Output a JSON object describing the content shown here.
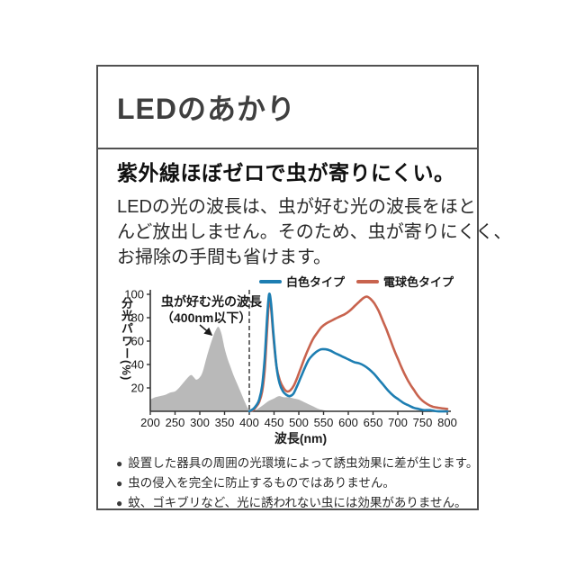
{
  "card": {
    "title": "LEDのあかり",
    "heading": "紫外線ほぼゼロで虫が寄りにくい。",
    "body_lines": [
      "LEDの光の波長は、虫が好む光の波長をほと",
      "んど放出しません。そのため、虫が寄りにくく、",
      "お掃除の手間も省けます。"
    ],
    "bullet": "●",
    "footnotes": [
      "設置した器具の周囲の光環境によって誘虫効果に差が生じます。",
      "虫の侵入を完全に防止するものではありません。",
      "蚊、ゴキブリなど、光に誘われない虫には効果がありません。"
    ]
  },
  "chart_data": {
    "type": "line",
    "title": "",
    "xlabel": "波長(nm)",
    "ylabel": "分光パワー(%)",
    "xlim": [
      200,
      800
    ],
    "ylim": [
      0,
      100
    ],
    "x_ticks": [
      200,
      250,
      300,
      350,
      400,
      450,
      500,
      550,
      600,
      650,
      700,
      750,
      800
    ],
    "y_ticks": [
      20,
      40,
      60,
      80,
      100
    ],
    "grid": false,
    "legend_position": "top-right",
    "dashed_line_x": 400,
    "annotation": {
      "line1": "虫が好む光の波長",
      "line2": "（400nm以下）"
    },
    "insect_area": {
      "name": "虫が好む光の波長（400nm以下）",
      "color": "#b9b9b9",
      "points": [
        [
          200,
          10
        ],
        [
          210,
          12
        ],
        [
          220,
          13
        ],
        [
          230,
          14
        ],
        [
          240,
          16
        ],
        [
          250,
          17
        ],
        [
          258,
          20
        ],
        [
          266,
          24
        ],
        [
          274,
          28
        ],
        [
          282,
          31
        ],
        [
          288,
          29
        ],
        [
          293,
          27
        ],
        [
          300,
          29
        ],
        [
          306,
          34
        ],
        [
          313,
          45
        ],
        [
          320,
          55
        ],
        [
          327,
          64
        ],
        [
          333,
          70
        ],
        [
          338,
          72
        ],
        [
          344,
          66
        ],
        [
          350,
          54
        ],
        [
          356,
          45
        ],
        [
          362,
          38
        ],
        [
          368,
          31
        ],
        [
          374,
          25
        ],
        [
          380,
          19
        ],
        [
          386,
          13
        ],
        [
          392,
          7
        ],
        [
          398,
          2
        ],
        [
          404,
          0
        ],
        [
          412,
          1
        ],
        [
          420,
          3
        ],
        [
          430,
          6
        ],
        [
          440,
          9
        ],
        [
          450,
          11
        ],
        [
          460,
          13
        ],
        [
          470,
          12
        ],
        [
          480,
          12
        ],
        [
          490,
          11
        ],
        [
          500,
          10
        ],
        [
          510,
          8
        ],
        [
          520,
          6
        ],
        [
          530,
          4
        ],
        [
          540,
          2
        ],
        [
          550,
          1
        ],
        [
          560,
          0
        ]
      ]
    },
    "series": [
      {
        "name": "白色タイプ",
        "color": "#1d7eb2",
        "points": [
          [
            400,
            0
          ],
          [
            408,
            2
          ],
          [
            414,
            5
          ],
          [
            420,
            10
          ],
          [
            426,
            22
          ],
          [
            431,
            45
          ],
          [
            436,
            80
          ],
          [
            440,
            100
          ],
          [
            444,
            92
          ],
          [
            449,
            65
          ],
          [
            455,
            38
          ],
          [
            461,
            24
          ],
          [
            468,
            17
          ],
          [
            475,
            14
          ],
          [
            482,
            13
          ],
          [
            489,
            15
          ],
          [
            496,
            21
          ],
          [
            504,
            29
          ],
          [
            512,
            37
          ],
          [
            520,
            44
          ],
          [
            528,
            48
          ],
          [
            536,
            51
          ],
          [
            545,
            53
          ],
          [
            554,
            53
          ],
          [
            563,
            52
          ],
          [
            572,
            50
          ],
          [
            582,
            48
          ],
          [
            592,
            46
          ],
          [
            602,
            44
          ],
          [
            612,
            42
          ],
          [
            622,
            41
          ],
          [
            632,
            39
          ],
          [
            642,
            36
          ],
          [
            652,
            32
          ],
          [
            662,
            27
          ],
          [
            672,
            22
          ],
          [
            682,
            17
          ],
          [
            692,
            13
          ],
          [
            702,
            10
          ],
          [
            712,
            7
          ],
          [
            722,
            5
          ],
          [
            732,
            3
          ],
          [
            742,
            2
          ],
          [
            752,
            1
          ],
          [
            765,
            1
          ],
          [
            780,
            0
          ],
          [
            800,
            0
          ]
        ]
      },
      {
        "name": "電球色タイプ",
        "color": "#c8634e",
        "points": [
          [
            400,
            0
          ],
          [
            408,
            1
          ],
          [
            414,
            4
          ],
          [
            420,
            8
          ],
          [
            426,
            17
          ],
          [
            431,
            35
          ],
          [
            436,
            70
          ],
          [
            440,
            95
          ],
          [
            444,
            88
          ],
          [
            449,
            62
          ],
          [
            455,
            38
          ],
          [
            462,
            26
          ],
          [
            469,
            20
          ],
          [
            476,
            17
          ],
          [
            483,
            18
          ],
          [
            490,
            22
          ],
          [
            497,
            29
          ],
          [
            505,
            38
          ],
          [
            513,
            47
          ],
          [
            521,
            55
          ],
          [
            529,
            62
          ],
          [
            537,
            67
          ],
          [
            546,
            72
          ],
          [
            555,
            75
          ],
          [
            564,
            77
          ],
          [
            573,
            79
          ],
          [
            583,
            81
          ],
          [
            593,
            83
          ],
          [
            603,
            86
          ],
          [
            613,
            90
          ],
          [
            623,
            94
          ],
          [
            631,
            97
          ],
          [
            638,
            98
          ],
          [
            645,
            96
          ],
          [
            653,
            92
          ],
          [
            661,
            86
          ],
          [
            669,
            78
          ],
          [
            677,
            70
          ],
          [
            685,
            61
          ],
          [
            693,
            52
          ],
          [
            701,
            44
          ],
          [
            709,
            36
          ],
          [
            717,
            29
          ],
          [
            725,
            23
          ],
          [
            733,
            18
          ],
          [
            741,
            13
          ],
          [
            750,
            9
          ],
          [
            760,
            6
          ],
          [
            770,
            4
          ],
          [
            782,
            3
          ],
          [
            800,
            2
          ]
        ]
      }
    ]
  }
}
